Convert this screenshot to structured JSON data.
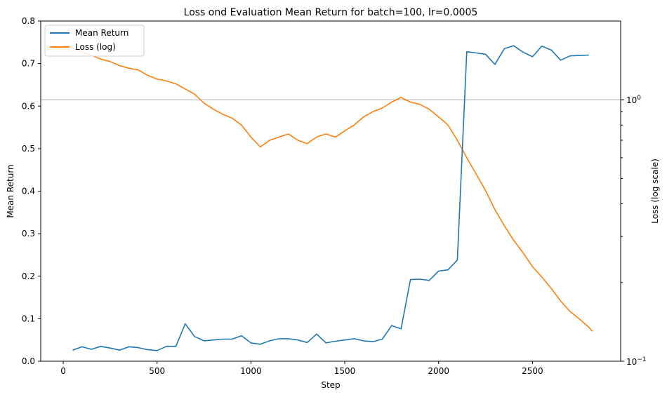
{
  "chart_data": {
    "type": "line",
    "title": "Loss ond Evaluation Mean Return for batch=100, lr=0.0005",
    "xlabel": "Step",
    "ylabel_left": "Mean Return",
    "ylabel_right": "Loss (log scale)",
    "xlim": [
      -120,
      2970
    ],
    "ylim_left": [
      0,
      0.8
    ],
    "ylim_right_log": [
      0.1,
      2
    ],
    "x_ticks": [
      0,
      500,
      1000,
      1500,
      2000,
      2500
    ],
    "y_ticks_left": [
      0,
      0.1,
      0.2,
      0.3,
      0.4,
      0.5,
      0.6,
      0.7,
      0.8
    ],
    "y_ticks_right": [
      {
        "value": 0.1,
        "base": "10",
        "exp": "−1"
      },
      {
        "value": 1,
        "base": "10",
        "exp": "0"
      }
    ],
    "hline_right": 1,
    "legend_position": "top-left",
    "colors": {
      "mean_return": "#1f77b4",
      "loss": "#ff7f0e",
      "hline": "#b0b0b0"
    },
    "series": [
      {
        "name": "Mean Return",
        "axis": "left",
        "x": [
          50,
          100,
          150,
          200,
          250,
          300,
          350,
          400,
          450,
          500,
          550,
          600,
          650,
          700,
          750,
          800,
          850,
          900,
          950,
          1000,
          1050,
          1100,
          1150,
          1200,
          1250,
          1300,
          1350,
          1400,
          1450,
          1500,
          1550,
          1600,
          1650,
          1700,
          1750,
          1800,
          1850,
          1900,
          1950,
          2000,
          2050,
          2100,
          2150,
          2200,
          2250,
          2300,
          2350,
          2400,
          2450,
          2500,
          2550,
          2600,
          2650,
          2700,
          2750,
          2800
        ],
        "y": [
          0.026,
          0.034,
          0.028,
          0.035,
          0.031,
          0.026,
          0.034,
          0.032,
          0.027,
          0.025,
          0.035,
          0.035,
          0.088,
          0.058,
          0.048,
          0.05,
          0.052,
          0.052,
          0.06,
          0.043,
          0.04,
          0.048,
          0.053,
          0.053,
          0.05,
          0.044,
          0.064,
          0.043,
          0.047,
          0.05,
          0.053,
          0.048,
          0.046,
          0.052,
          0.084,
          0.076,
          0.192,
          0.193,
          0.19,
          0.212,
          0.215,
          0.238,
          0.728,
          0.725,
          0.722,
          0.698,
          0.735,
          0.742,
          0.727,
          0.716,
          0.741,
          0.732,
          0.708,
          0.718,
          0.719,
          0.72
        ]
      },
      {
        "name": "Loss (log)",
        "axis": "right",
        "x": [
          0,
          50,
          100,
          150,
          200,
          250,
          300,
          350,
          400,
          450,
          500,
          550,
          600,
          650,
          700,
          750,
          800,
          850,
          900,
          950,
          1000,
          1050,
          1100,
          1150,
          1200,
          1250,
          1300,
          1350,
          1400,
          1450,
          1500,
          1550,
          1600,
          1650,
          1700,
          1750,
          1800,
          1850,
          1900,
          1950,
          2000,
          2050,
          2100,
          2150,
          2200,
          2250,
          2300,
          2350,
          2400,
          2450,
          2500,
          2550,
          2600,
          2650,
          2700,
          2750,
          2800,
          2820
        ],
        "y": [
          1.62,
          1.58,
          1.52,
          1.48,
          1.43,
          1.4,
          1.35,
          1.32,
          1.3,
          1.24,
          1.2,
          1.18,
          1.15,
          1.1,
          1.05,
          0.97,
          0.92,
          0.88,
          0.85,
          0.8,
          0.72,
          0.66,
          0.7,
          0.72,
          0.74,
          0.7,
          0.68,
          0.72,
          0.74,
          0.72,
          0.76,
          0.8,
          0.86,
          0.9,
          0.93,
          0.98,
          1.02,
          0.98,
          0.96,
          0.92,
          0.86,
          0.8,
          0.7,
          0.6,
          0.52,
          0.45,
          0.38,
          0.33,
          0.29,
          0.26,
          0.23,
          0.21,
          0.19,
          0.17,
          0.155,
          0.145,
          0.135,
          0.13
        ]
      }
    ]
  }
}
